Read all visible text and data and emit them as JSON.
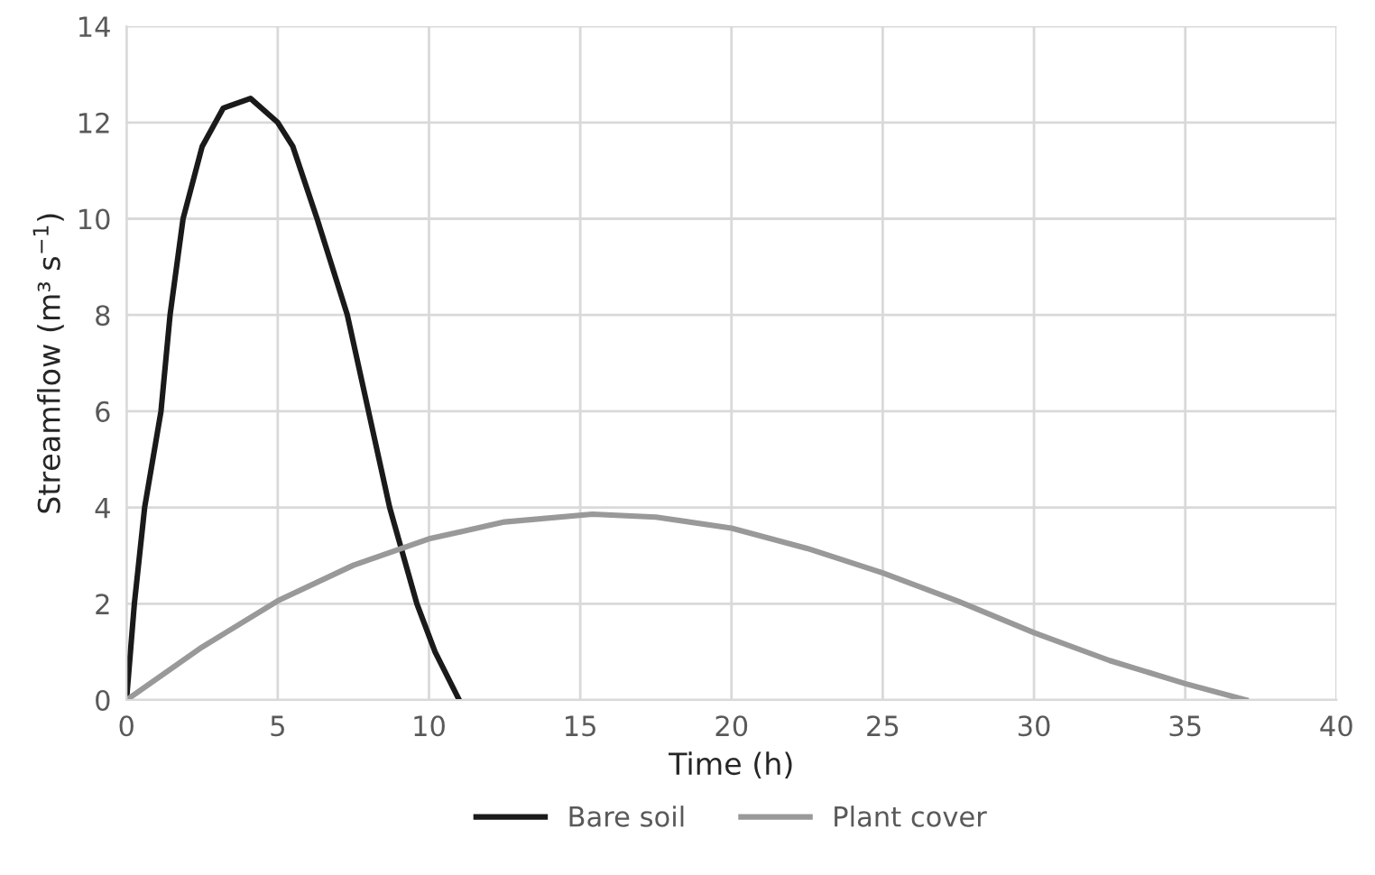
{
  "chart_data": {
    "type": "line",
    "xlabel": "Time (h)",
    "ylabel": "Streamflow (m³ s$^{−1}$)",
    "xlim": [
      0,
      40
    ],
    "xticks": [
      0,
      5,
      10,
      15,
      20,
      25,
      30,
      35,
      40
    ],
    "ylim": [
      0,
      14
    ],
    "yticks": [
      0,
      2,
      4,
      6,
      8,
      10,
      12,
      14
    ],
    "grid": true,
    "legend": "bottom",
    "marker": "none",
    "line_style": "solid",
    "series": [
      {
        "name": "Bare soil",
        "color": "#1a1a1a",
        "x": [
          0,
          0.26,
          0.6,
          1.14,
          1.44,
          1.87,
          2.5,
          3.2,
          4.1,
          5,
          5.5,
          6.3,
          7.3,
          8.0,
          8.7,
          9.6,
          10.2,
          11
        ],
        "values": [
          0,
          2,
          4,
          6,
          8,
          10,
          11.5,
          12.3,
          12.5,
          12.0,
          11.5,
          10,
          8,
          6,
          4,
          2,
          1,
          0
        ]
      },
      {
        "name": "Plant cover",
        "color": "#999999",
        "x": [
          0,
          2.5,
          5,
          7.5,
          10,
          12.5,
          15.4,
          17.5,
          20,
          22.5,
          25,
          27.5,
          30,
          32.5,
          35,
          37
        ],
        "values": [
          0,
          1.1,
          2.06,
          2.8,
          3.35,
          3.7,
          3.86,
          3.8,
          3.57,
          3.15,
          2.64,
          2.05,
          1.4,
          0.82,
          0.34,
          0
        ]
      }
    ]
  }
}
